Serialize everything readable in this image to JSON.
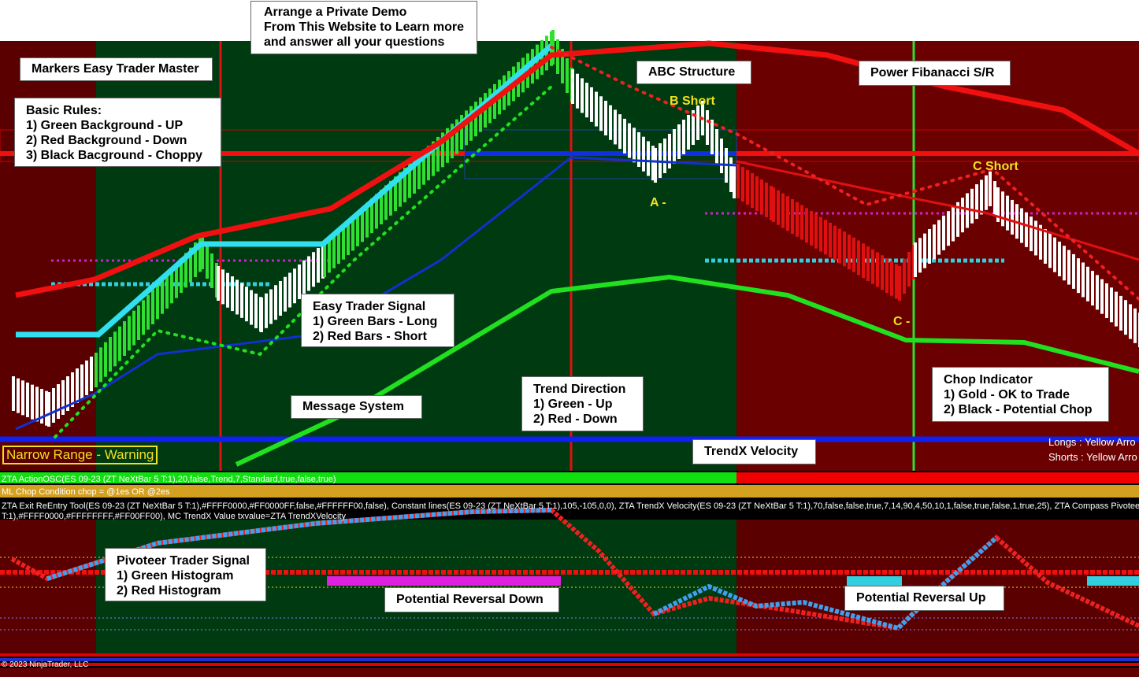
{
  "demo": {
    "lines": [
      "Arrange a Private Demo",
      "From This Website to Learn more",
      "and answer all your questions"
    ]
  },
  "callouts": [
    {
      "lines": [
        "Markers Easy Trader Master"
      ]
    },
    {
      "lines": [
        "Basic Rules:",
        "1) Green Background - UP",
        "2) Red Background - Down",
        "3) Black Bacground - Choppy"
      ]
    },
    {
      "lines": [
        "ABC Structure"
      ]
    },
    {
      "lines": [
        "Power Fibanacci S/R"
      ]
    },
    {
      "lines": [
        "Easy Trader Signal",
        "1) Green Bars - Long",
        "2) Red Bars - Short"
      ]
    },
    {
      "lines": [
        "Message System"
      ]
    },
    {
      "lines": [
        "Trend Direction",
        "1) Green - Up",
        "2) Red - Down"
      ]
    },
    {
      "lines": [
        "Chop Indicator",
        "1) Gold - OK to Trade",
        "2) Black - Potential Chop"
      ]
    },
    {
      "lines": [
        "TrendX Velocity"
      ]
    },
    {
      "lines": [
        "Pivoteer Trader Signal",
        "1) Green Histogram",
        "2) Red Histogram"
      ]
    },
    {
      "lines": [
        "Potential Reversal Down"
      ]
    },
    {
      "lines": [
        "Potential Reversal Up"
      ]
    }
  ],
  "markers": [
    "B Short",
    "A -",
    "C Short",
    "C -"
  ],
  "warning": "Narrow Range - Warning",
  "legend": [
    "Longs : Yellow Arro",
    "Shorts : Yellow Arro"
  ],
  "indicators": {
    "action_osc": "ZTA ActionOSC(ES 09-23 (ZT NeXtBar 5 T:1),20,false,Trend,7,Standard,true,false,true)",
    "chop": "ML Chop Condition chop = @1es OR @2es",
    "exit_line1": "ZTA Exit ReEntry Tool(ES 09-23 (ZT NeXtBar 5 T:1),#FFFF0000,#FF0000FF,false,#FFFFFF00,false), Constant lines(ES 09-23 (ZT NeXtBar 5 T:1),105,-105,0,0), ZTA TrendX Velocity(ES 09-23 (ZT NeXtBar 5 T:1),70,false,false,true,7,14,90,4,50,10,1,false,true,false,1,true,25), ZTA Compass Pivoteer Con",
    "exit_line2": "T:1),#FFFF0000,#FFFFFFFF,#FF00FF00), MC TrendX Value txvalue=ZTA TrendXVelocity"
  },
  "copyright": "© 2023 NinjaTrader, LLC"
}
